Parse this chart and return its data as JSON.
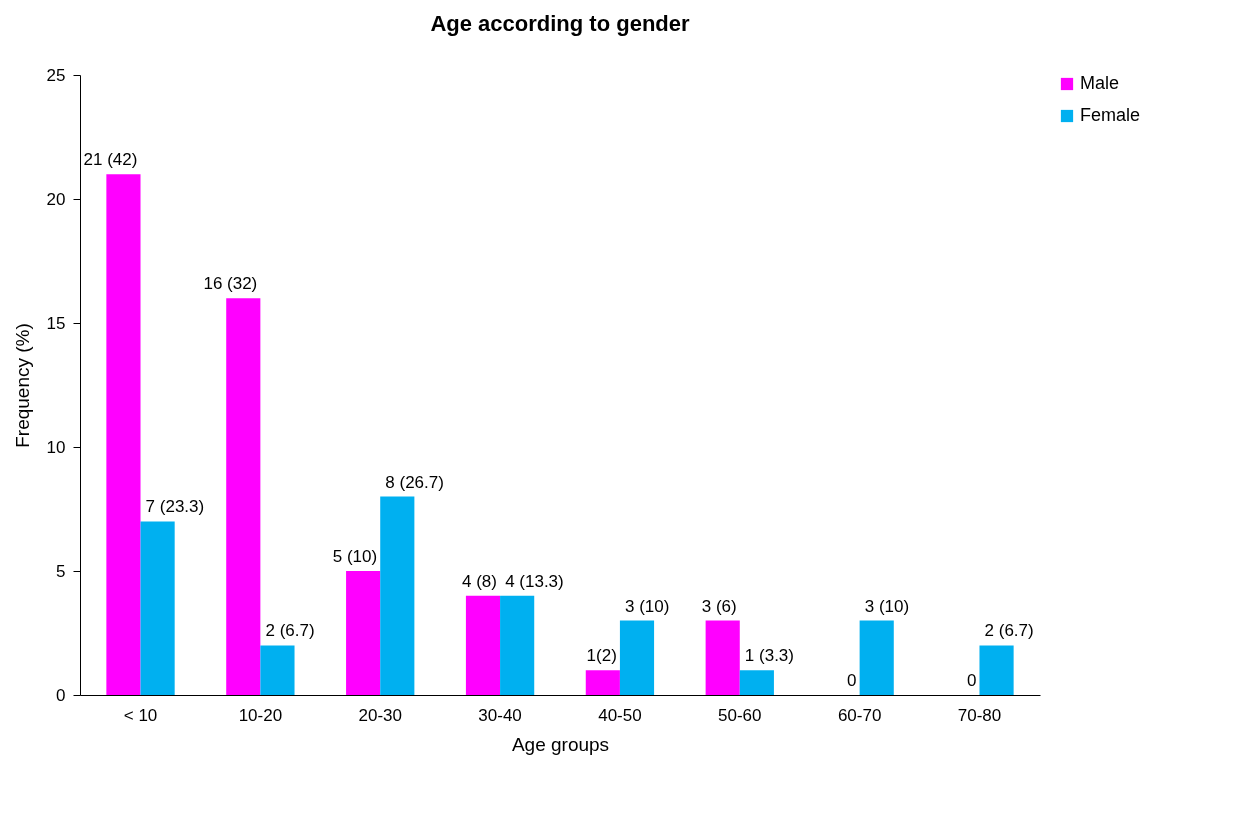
{
  "chart_data": {
    "type": "bar",
    "title": "Age according to gender",
    "xlabel": "Age groups",
    "ylabel": "Frequency (%)",
    "categories": [
      "< 10",
      "10-20",
      "20-30",
      "30-40",
      "40-50",
      "50-60",
      "60-70",
      "70-80"
    ],
    "series": [
      {
        "name": "Male",
        "color": "#ff00ff",
        "values": [
          21,
          16,
          5,
          4,
          1,
          3,
          0,
          0
        ],
        "value_labels": [
          "21 (42)",
          "16 (32)",
          "5 (10)",
          "4 (8)",
          "1(2)",
          "3 (6)",
          "0",
          "0"
        ]
      },
      {
        "name": "Female",
        "color": "#00b0f0",
        "values": [
          7,
          2,
          8,
          4,
          3,
          1,
          3,
          2
        ],
        "value_labels": [
          "7 (23.3)",
          "2 (6.7)",
          "8 (26.7)",
          "4 (13.3)",
          "3 (10)",
          "1 (3.3)",
          "3 (10)",
          "2 (6.7)"
        ]
      }
    ],
    "ylim": [
      0,
      25
    ],
    "yticks": [
      0,
      5,
      10,
      15,
      20,
      25
    ],
    "grid": false,
    "legend": "right"
  }
}
